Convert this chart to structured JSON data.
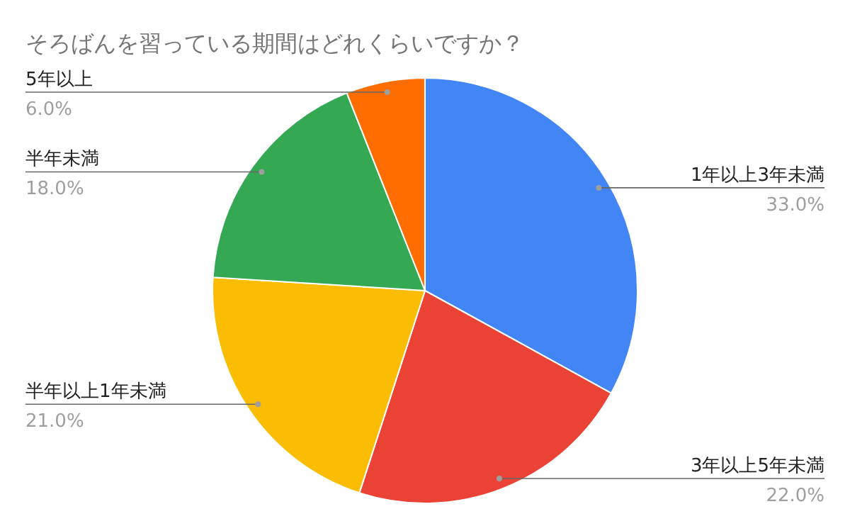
{
  "chart_data": {
    "type": "pie",
    "title": "そろばんを習っている期間はどれくらいですか？",
    "categories": [
      "1年以上3年未満",
      "3年以上5年未満",
      "半年以上1年未満",
      "半年未満",
      "5年以上"
    ],
    "values": [
      33,
      22,
      21,
      18,
      6
    ],
    "colors": [
      "#4285f4",
      "#ea4335",
      "#fbbc04",
      "#34a853",
      "#ff6d01"
    ],
    "value_labels": [
      "33.0%",
      "22.0%",
      "21.0%",
      "18.0%",
      "6.0%"
    ]
  }
}
